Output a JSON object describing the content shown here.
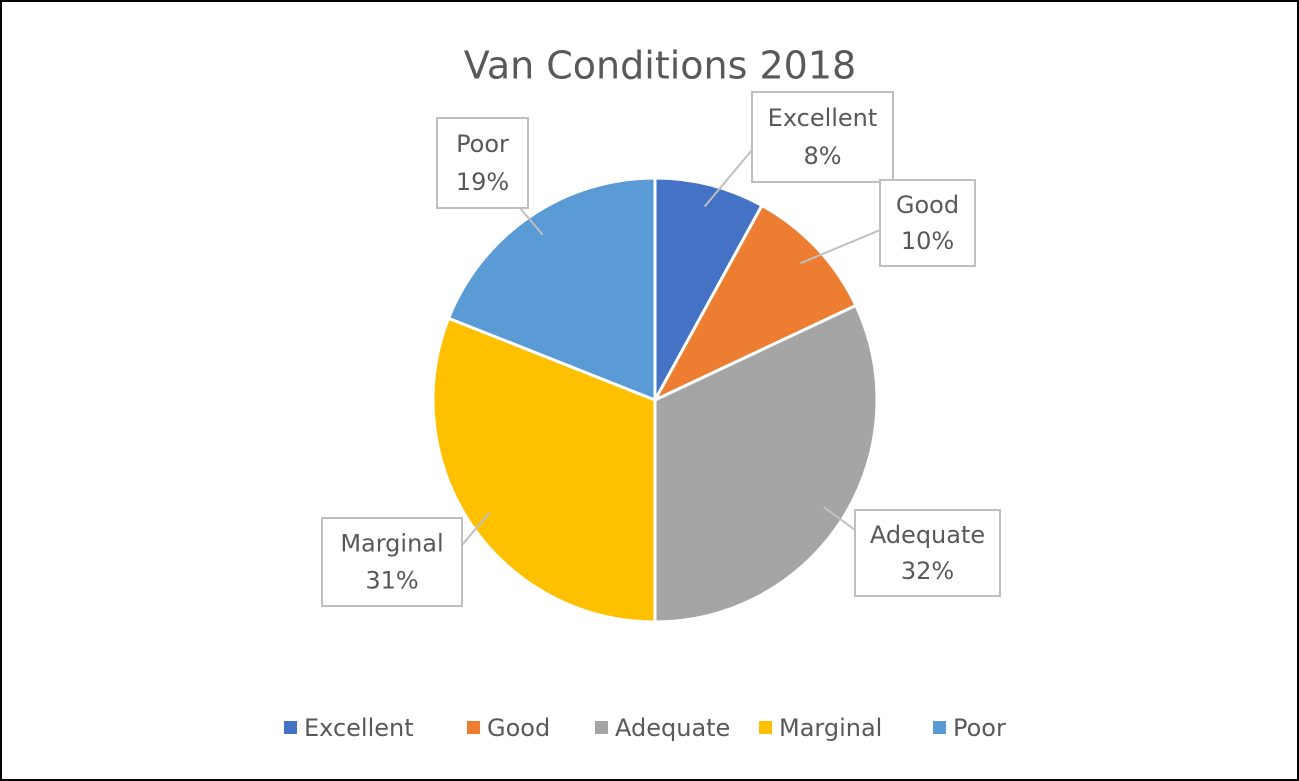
{
  "chart_data": {
    "type": "pie",
    "title": "Van Conditions 2018",
    "categories": [
      "Excellent",
      "Good",
      "Adequate",
      "Marginal",
      "Poor"
    ],
    "values": [
      8,
      10,
      32,
      31,
      19
    ],
    "value_labels": [
      "8%",
      "10%",
      "32%",
      "31%",
      "19%"
    ],
    "colors": [
      "#4472c4",
      "#ed7d31",
      "#a5a5a5",
      "#ffc000",
      "#5b9bd5"
    ],
    "legend": "bottom"
  }
}
